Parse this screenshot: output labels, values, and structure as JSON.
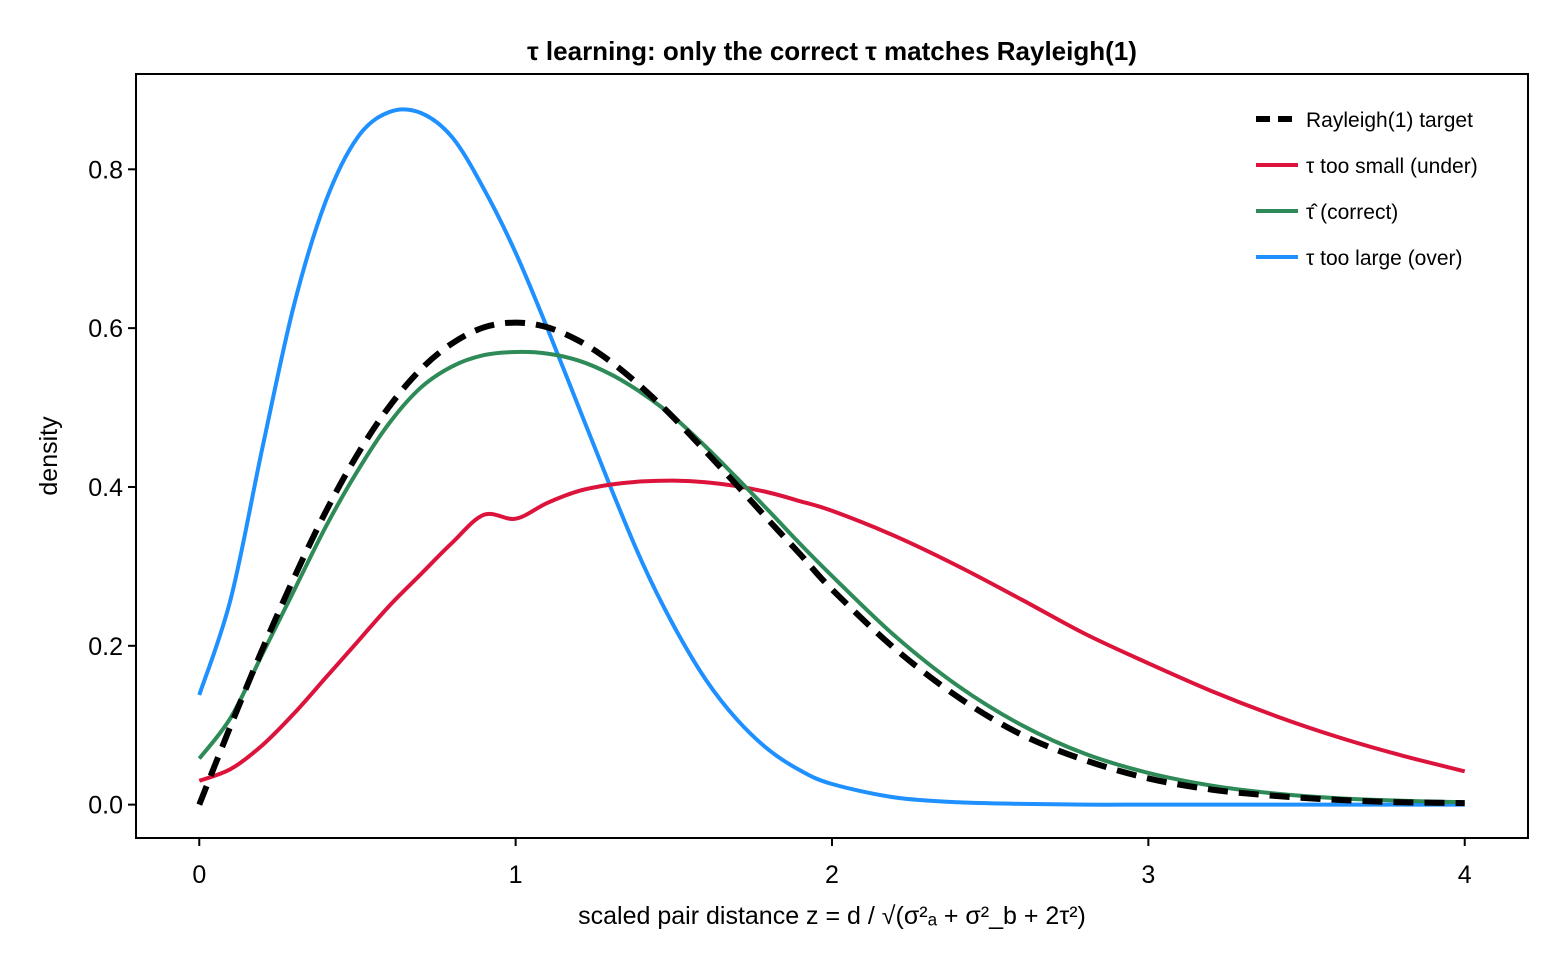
{
  "chart_data": {
    "type": "line",
    "title": "τ learning: only the correct τ matches Rayleigh(1)",
    "xlabel": "scaled pair distance  z = d / √(σ²ₐ + σ²_b + 2τ²)",
    "ylabel": "density",
    "xlim": [
      -0.2,
      4.2
    ],
    "ylim": [
      -0.042,
      0.92
    ],
    "xticks": [
      0,
      1,
      2,
      3,
      4
    ],
    "xtick_labels": [
      "0",
      "1",
      "2",
      "3",
      "4"
    ],
    "yticks": [
      0.0,
      0.2,
      0.4,
      0.6,
      0.8
    ],
    "ytick_labels": [
      "0.0",
      "0.2",
      "0.4",
      "0.6",
      "0.8"
    ],
    "grid": false,
    "legend_position": "top-right",
    "x": [
      0,
      0.1,
      0.2,
      0.3,
      0.4,
      0.5,
      0.6,
      0.7,
      0.8,
      0.9,
      1.0,
      1.1,
      1.2,
      1.3,
      1.4,
      1.5,
      1.6,
      1.7,
      1.8,
      1.9,
      2.0,
      2.2,
      2.4,
      2.6,
      2.8,
      3.0,
      3.2,
      3.4,
      3.6,
      3.8,
      4.0
    ],
    "series": [
      {
        "name": "Rayleigh(1) target",
        "color": "#000000",
        "dash": "dashed",
        "values": [
          0.0,
          0.1,
          0.196,
          0.286,
          0.369,
          0.441,
          0.501,
          0.548,
          0.581,
          0.601,
          0.607,
          0.601,
          0.584,
          0.558,
          0.525,
          0.487,
          0.445,
          0.402,
          0.358,
          0.315,
          0.271,
          0.196,
          0.135,
          0.088,
          0.056,
          0.033,
          0.019,
          0.011,
          0.006,
          0.003,
          0.002
        ]
      },
      {
        "name": "τ too small (under)",
        "color": "#dc143c",
        "dash": "solid",
        "values": [
          0.03,
          0.045,
          0.075,
          0.115,
          0.16,
          0.205,
          0.25,
          0.29,
          0.33,
          0.365,
          0.36,
          0.38,
          0.395,
          0.403,
          0.407,
          0.408,
          0.406,
          0.401,
          0.393,
          0.382,
          0.37,
          0.338,
          0.3,
          0.258,
          0.215,
          0.178,
          0.143,
          0.112,
          0.085,
          0.062,
          0.042
        ]
      },
      {
        "name": "τ̂ (correct)",
        "color": "#2e8b57",
        "dash": "solid",
        "values": [
          0.058,
          0.11,
          0.19,
          0.27,
          0.35,
          0.42,
          0.48,
          0.525,
          0.552,
          0.566,
          0.57,
          0.568,
          0.559,
          0.542,
          0.518,
          0.488,
          0.451,
          0.411,
          0.37,
          0.328,
          0.288,
          0.212,
          0.149,
          0.1,
          0.064,
          0.04,
          0.024,
          0.014,
          0.008,
          0.005,
          0.003
        ]
      },
      {
        "name": "τ too large (over)",
        "color": "#1e90ff",
        "dash": "solid",
        "values": [
          0.138,
          0.26,
          0.45,
          0.63,
          0.76,
          0.84,
          0.872,
          0.871,
          0.84,
          0.775,
          0.695,
          0.6,
          0.5,
          0.4,
          0.305,
          0.225,
          0.158,
          0.107,
          0.069,
          0.043,
          0.026,
          0.009,
          0.003,
          0.001,
          0.0,
          0.0,
          0.0,
          0.0,
          0.0,
          0.0,
          0.0
        ]
      }
    ]
  }
}
